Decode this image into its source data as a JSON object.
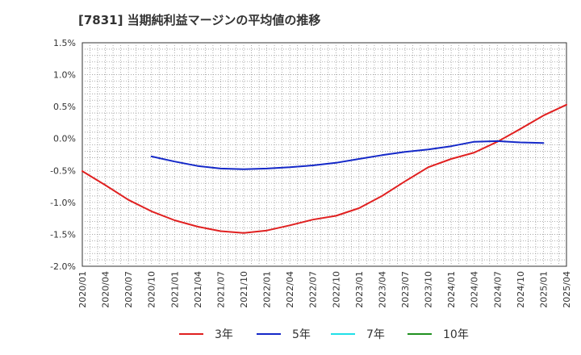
{
  "title": "[7831]  当期純利益マージンの平均値の推移",
  "chart_data": {
    "type": "line",
    "title": "[7831]  当期純利益マージンの平均値の推移",
    "xlabel": "",
    "ylabel": "",
    "grid": true,
    "legend_position": "bottom",
    "x_ticks": [
      "2020/01",
      "2020/04",
      "2020/07",
      "2020/10",
      "2021/01",
      "2021/04",
      "2021/07",
      "2021/10",
      "2022/01",
      "2022/04",
      "2022/07",
      "2022/10",
      "2023/01",
      "2023/04",
      "2023/07",
      "2023/10",
      "2024/01",
      "2024/04",
      "2024/07",
      "2024/10",
      "2025/01",
      "2025/04"
    ],
    "y_ticks": [
      "1.5%",
      "1.0%",
      "0.5%",
      "0.0%",
      "-0.5%",
      "-1.0%",
      "-1.5%",
      "-2.0%"
    ],
    "ylim": [
      -2.0,
      1.5
    ],
    "series": [
      {
        "name": "3年",
        "color": "#e02020",
        "points": [
          [
            "2020/01",
            -0.51
          ],
          [
            "2020/04",
            -0.73
          ],
          [
            "2020/07",
            -0.96
          ],
          [
            "2020/10",
            -1.14
          ],
          [
            "2021/01",
            -1.28
          ],
          [
            "2021/04",
            -1.38
          ],
          [
            "2021/07",
            -1.45
          ],
          [
            "2021/10",
            -1.48
          ],
          [
            "2022/01",
            -1.44
          ],
          [
            "2022/04",
            -1.36
          ],
          [
            "2022/07",
            -1.27
          ],
          [
            "2022/10",
            -1.21
          ],
          [
            "2023/01",
            -1.09
          ],
          [
            "2023/04",
            -0.9
          ],
          [
            "2023/07",
            -0.67
          ],
          [
            "2023/10",
            -0.45
          ],
          [
            "2024/01",
            -0.32
          ],
          [
            "2024/04",
            -0.22
          ],
          [
            "2024/07",
            -0.05
          ],
          [
            "2024/10",
            0.15
          ],
          [
            "2025/01",
            0.36
          ],
          [
            "2025/04",
            0.53
          ]
        ]
      },
      {
        "name": "5年",
        "color": "#1428c8",
        "points": [
          [
            "2020/10",
            -0.28
          ],
          [
            "2021/01",
            -0.36
          ],
          [
            "2021/04",
            -0.43
          ],
          [
            "2021/07",
            -0.47
          ],
          [
            "2021/10",
            -0.48
          ],
          [
            "2022/01",
            -0.47
          ],
          [
            "2022/04",
            -0.45
          ],
          [
            "2022/07",
            -0.42
          ],
          [
            "2022/10",
            -0.38
          ],
          [
            "2023/01",
            -0.32
          ],
          [
            "2023/04",
            -0.26
          ],
          [
            "2023/07",
            -0.21
          ],
          [
            "2023/10",
            -0.17
          ],
          [
            "2024/01",
            -0.12
          ],
          [
            "2024/04",
            -0.05
          ],
          [
            "2024/07",
            -0.04
          ],
          [
            "2024/10",
            -0.06
          ],
          [
            "2025/01",
            -0.07
          ]
        ]
      },
      {
        "name": "7年",
        "color": "#20e0e8",
        "points": []
      },
      {
        "name": "10年",
        "color": "#209020",
        "points": []
      }
    ]
  }
}
